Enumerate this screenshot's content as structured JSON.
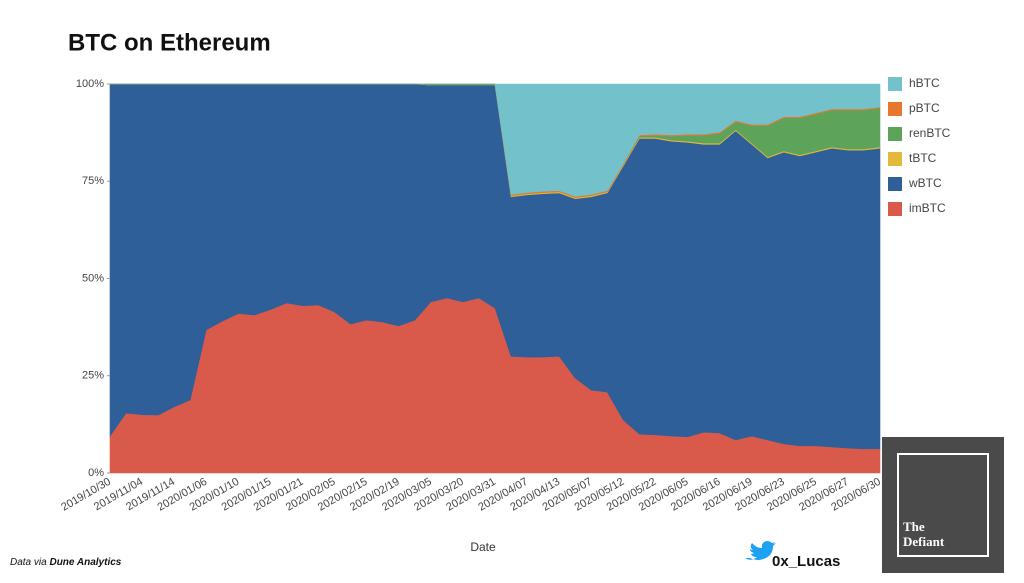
{
  "chart_data": {
    "type": "stacked_area",
    "title": "BTC on Ethereum",
    "x_label": "Date",
    "source_prefix": "Data via",
    "source": "Dune Analytics",
    "handle": "0x_Lucas",
    "logo": [
      "The",
      "Defiant"
    ],
    "categories": [
      "2019/10/30",
      null,
      "2019/11/04",
      null,
      "2019/11/14",
      null,
      "2020/01/06",
      null,
      "2020/01/10",
      null,
      "2020/01/15",
      null,
      "2020/01/21",
      null,
      "2020/02/05",
      null,
      "2020/02/15",
      null,
      "2020/02/19",
      null,
      "2020/03/05",
      null,
      "2020/03/20",
      null,
      "2020/03/31",
      null,
      "2020/04/07",
      null,
      "2020/04/13",
      null,
      "2020/05/07",
      null,
      "2020/05/12",
      null,
      "2020/05/22",
      null,
      "2020/06/05",
      null,
      "2020/06/16",
      null,
      "2020/06/19",
      null,
      "2020/06/23",
      null,
      "2020/06/25",
      null,
      "2020/06/27",
      null,
      "2020/06/30"
    ],
    "series": [
      {
        "name": "imBTC",
        "color": "#d95a4a",
        "values": [
          9.5,
          15.4,
          15,
          14.9,
          17,
          18.8,
          36.8,
          39,
          41,
          40.6,
          42,
          43.7,
          43,
          43.2,
          41.4,
          38.3,
          39.3,
          38.8,
          37.8,
          39.3,
          44,
          45,
          44,
          45,
          42.4,
          30,
          29.8,
          29.8,
          30,
          24.4,
          21.3,
          20.8,
          13.6,
          10,
          9.8,
          9.5,
          9.3,
          10.5,
          10.3,
          8.5,
          9.5,
          8.5,
          7.5,
          7,
          7,
          6.7,
          6.4,
          6.2,
          6.2
        ]
      },
      {
        "name": "wBTC",
        "color": "#2f5f98",
        "values": [
          90.5,
          84.6,
          85,
          85.1,
          83,
          81.2,
          63.2,
          61,
          59,
          59.4,
          58,
          56.3,
          57,
          56.8,
          58.6,
          61.7,
          60.7,
          61.2,
          62.2,
          60.7,
          55.7,
          54.7,
          55.7,
          54.7,
          57.3,
          41,
          41.7,
          42,
          42,
          46.1,
          49.7,
          51.2,
          65.4,
          76,
          76.2,
          75.8,
          75.7,
          74,
          74.2,
          79.5,
          75,
          72.5,
          75,
          74.5,
          75.5,
          76.8,
          76.6,
          76.8,
          77.3
        ]
      },
      {
        "name": "tBTC",
        "color": "#e3b93c",
        "values": [
          0,
          0,
          0,
          0,
          0,
          0,
          0,
          0,
          0,
          0,
          0,
          0,
          0,
          0,
          0,
          0,
          0,
          0,
          0,
          0,
          0,
          0,
          0,
          0,
          0,
          0.3,
          0.3,
          0.3,
          0.3,
          0.3,
          0.3,
          0.3,
          0.3,
          0.3,
          0.3,
          0.3,
          0.3,
          0.3,
          0.3,
          0.3,
          0.3,
          0.3,
          0.3,
          0.3,
          0.3,
          0.3,
          0.3,
          0.3,
          0.3
        ]
      },
      {
        "name": "renBTC",
        "color": "#5ea35a",
        "values": [
          0,
          0,
          0,
          0,
          0,
          0,
          0,
          0,
          0,
          0,
          0,
          0,
          0,
          0,
          0,
          0,
          0,
          0,
          0,
          0,
          0.3,
          0.3,
          0.3,
          0.3,
          0.3,
          0,
          0,
          0,
          0,
          0,
          0,
          0,
          0,
          0.3,
          0.5,
          1,
          1.5,
          2,
          2.5,
          2,
          4.5,
          8,
          8.5,
          9.5,
          9.5,
          9.5,
          10,
          10,
          10
        ]
      },
      {
        "name": "pBTC",
        "color": "#e8772e",
        "values": [
          0,
          0,
          0,
          0,
          0,
          0,
          0,
          0,
          0,
          0,
          0,
          0,
          0,
          0,
          0,
          0,
          0,
          0,
          0,
          0,
          0,
          0,
          0,
          0,
          0,
          0.3,
          0.3,
          0.3,
          0.3,
          0.3,
          0.3,
          0.3,
          0.3,
          0.3,
          0.3,
          0.3,
          0.3,
          0.3,
          0.3,
          0.3,
          0.3,
          0.3,
          0.3,
          0.3,
          0.3,
          0.3,
          0.3,
          0.3,
          0.3
        ]
      },
      {
        "name": "hBTC",
        "color": "#72c1cb",
        "values": [
          0,
          0,
          0,
          0,
          0,
          0,
          0,
          0,
          0,
          0,
          0,
          0,
          0,
          0,
          0,
          0,
          0,
          0,
          0,
          0,
          0,
          0,
          0,
          0,
          0,
          28.4,
          27.9,
          27.6,
          27.4,
          28.9,
          28.4,
          27.4,
          20.4,
          13.1,
          12.9,
          13.1,
          12.9,
          12.9,
          12.4,
          9.4,
          10.4,
          10.4,
          8.4,
          8.4,
          7.4,
          6.4,
          6.4,
          6.4,
          5.9
        ]
      }
    ],
    "ylim": [
      0,
      100
    ],
    "yticks": [
      {
        "value": 0,
        "label": "0%"
      },
      {
        "value": 25,
        "label": "25%"
      },
      {
        "value": 50,
        "label": "50%"
      },
      {
        "value": 75,
        "label": "75%"
      },
      {
        "value": 100,
        "label": "100%"
      }
    ],
    "legend": "right"
  }
}
